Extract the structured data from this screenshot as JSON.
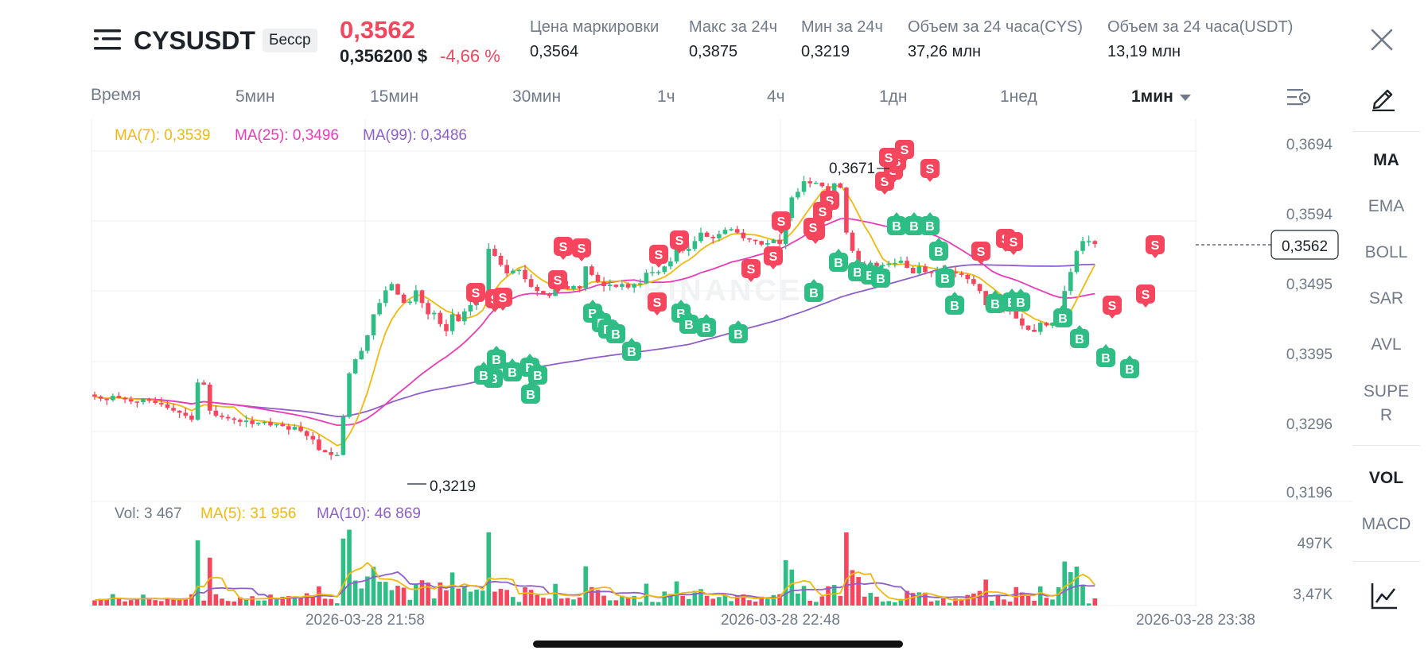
{
  "header": {
    "symbol": "CYSUSDT",
    "contract_type": "Бесср",
    "last_price": "0,3562",
    "usd_price": "0,356200 $",
    "change_pct": "-4,66 %",
    "stats": [
      {
        "label": "Цена маркировки",
        "value": "0,3564"
      },
      {
        "label": "Макс за 24ч",
        "value": "0,3875"
      },
      {
        "label": "Мин за 24ч",
        "value": "0,3219"
      },
      {
        "label": "Объем за 24 часа(CYS)",
        "value": "37,26 млн"
      },
      {
        "label": "Объем за 24 часа(USDT)",
        "value": "13,19 млн"
      }
    ]
  },
  "timeframes": {
    "items": [
      "Время",
      "5мин",
      "15мин",
      "30мин",
      "1ч",
      "4ч",
      "1дн",
      "1нед"
    ],
    "selected": "1мин"
  },
  "sidebar": {
    "indicators": [
      "MA",
      "EMA",
      "BOLL",
      "SAR",
      "AVL",
      "SUPE\nR"
    ],
    "sub_indicators": [
      "VOL",
      "MACD"
    ],
    "active_main": "MA",
    "active_sub": "VOL"
  },
  "legend": {
    "ma7": "MA(7): 0,3539",
    "ma25": "MA(25): 0,3496",
    "ma99": "MA(99): 0,3486",
    "vol": "Vol: 3 467",
    "vol_ma5": "MA(5): 31 956",
    "vol_ma10": "MA(10): 46 869"
  },
  "colors": {
    "up": "#2ebd85",
    "down": "#f6465d",
    "ma7": "#f0b90b",
    "ma25": "#e83cb9",
    "ma99": "#8e5ecb",
    "vol_ma5": "#f0b90b",
    "vol_ma10": "#8e5ecb"
  },
  "watermark": "BINANCE",
  "chart_data": {
    "type": "candlestick",
    "y_ticks": [
      "0,3694",
      "0,3594",
      "0,3495",
      "0,3395",
      "0,3296",
      "0,3196"
    ],
    "ylim": [
      0.3196,
      0.3694
    ],
    "volume_ticks": [
      "497K",
      "3,47K"
    ],
    "x_ticks": [
      "2026-03-28 21:58",
      "2026-03-28 22:48",
      "2026-03-28 23:38"
    ],
    "high_annotation": "0,3671",
    "low_annotation": "0,3219",
    "current_price_label": "0,3562",
    "close_approx": [
      0.3345,
      0.3342,
      0.334,
      0.3346,
      0.3343,
      0.3341,
      0.3338,
      0.3337,
      0.3342,
      0.3339,
      0.3336,
      0.3334,
      0.3329,
      0.3325,
      0.3322,
      0.3318,
      0.3312,
      0.3365,
      0.3362,
      0.3325,
      0.3318,
      0.3316,
      0.3314,
      0.3312,
      0.3309,
      0.3311,
      0.3306,
      0.3308,
      0.3309,
      0.3304,
      0.3306,
      0.3303,
      0.3298,
      0.3302,
      0.3296,
      0.3289,
      0.3284,
      0.3269,
      0.3266,
      0.3262,
      0.3262,
      0.3316,
      0.3378,
      0.3398,
      0.341,
      0.3432,
      0.3462,
      0.3478,
      0.3496,
      0.3505,
      0.349,
      0.3478,
      0.348,
      0.3496,
      0.3478,
      0.3462,
      0.3464,
      0.3448,
      0.3438,
      0.3462,
      0.3452,
      0.3466,
      0.3475,
      0.3485,
      0.3495,
      0.3555,
      0.3545,
      0.3532,
      0.352,
      0.3524,
      0.3525,
      0.3512,
      0.3501,
      0.3495,
      0.3491,
      0.3488,
      0.3505,
      0.3502,
      0.3498,
      0.3502,
      0.3499,
      0.353,
      0.3518,
      0.3508,
      0.3502,
      0.3504,
      0.3501,
      0.3505,
      0.35,
      0.3505,
      0.3506,
      0.3521,
      0.3522,
      0.3522,
      0.353,
      0.3537,
      0.3556,
      0.3552,
      0.3555,
      0.3566,
      0.3578,
      0.3572,
      0.357,
      0.3576,
      0.3582,
      0.3583,
      0.3578,
      0.357,
      0.3568,
      0.3566,
      0.3561,
      0.3563,
      0.3568,
      0.3562,
      0.3599,
      0.3628,
      0.3636,
      0.3651,
      0.3648,
      0.3649,
      0.3644,
      0.3632,
      0.3648,
      0.3642,
      0.3578,
      0.3552,
      0.3532,
      0.3528,
      0.3535,
      0.353,
      0.3532,
      0.3534,
      0.3535,
      0.3538,
      0.3528,
      0.352,
      0.353,
      0.3522,
      0.3521,
      0.3524,
      0.3522,
      0.3522,
      0.352,
      0.3518,
      0.3512,
      0.3505,
      0.3495,
      0.3475,
      0.3476,
      0.3472,
      0.347,
      0.3468,
      0.3456,
      0.3446,
      0.344,
      0.3437,
      0.345,
      0.3446,
      0.345,
      0.3462,
      0.3495,
      0.3522,
      0.3552,
      0.3566,
      0.3566,
      0.3562
    ]
  }
}
